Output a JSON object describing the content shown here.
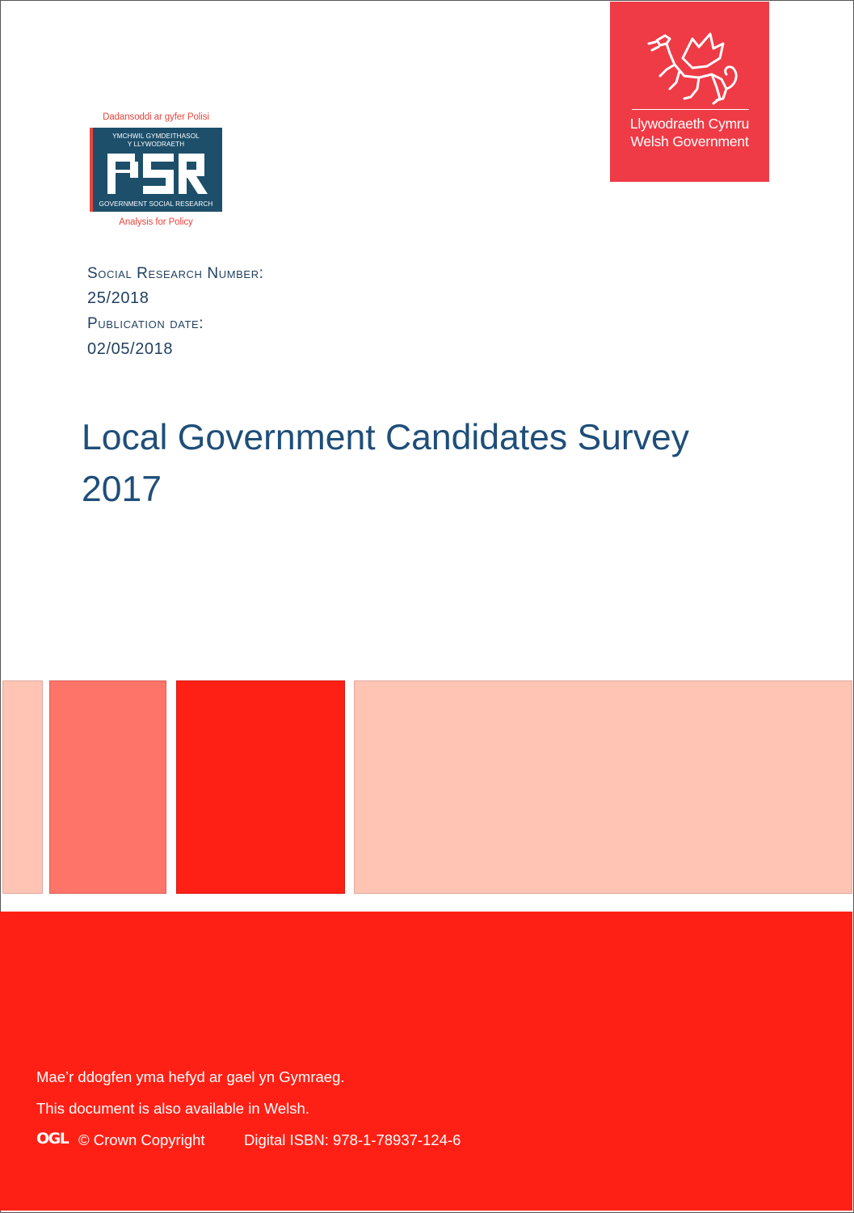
{
  "wg_logo": {
    "line1": "Llywodraeth Cymru",
    "line2": "Welsh Government",
    "icon": "welsh-dragon-icon"
  },
  "gsr_logo": {
    "top_text": "Dadansoddi ar gyfer Polisi",
    "box_line1": "YMCHWIL GYMDEITHASOL",
    "box_line2": "Y LLYWODRAETH",
    "letters": "GSR",
    "box_line3": "GOVERNMENT SOCIAL RESEARCH",
    "bottom_text": "Analysis for Policy"
  },
  "meta": {
    "research_number_label": "Social Research Number:",
    "research_number": "25/2018",
    "publication_date_label": "Publication date:",
    "publication_date": "02/05/2018"
  },
  "title": {
    "line1": "Local Government Candidates Survey",
    "line2": "2017"
  },
  "footer": {
    "welsh_notice": "Mae’r ddogfen yma hefyd ar gael yn Gymraeg.",
    "english_notice": "This document is also available in Welsh.",
    "ogl": "OGL",
    "copyright": "© Crown Copyright",
    "isbn": "Digital ISBN: 978-1-78937-124-6"
  },
  "colors": {
    "welsh_red": "#ee3b46",
    "gsr_blue": "#1d4f6b",
    "title_blue": "#1f4e79",
    "bright_red": "#ff2015",
    "salmon": "#ff7469",
    "peach": "#ffc4b3"
  }
}
